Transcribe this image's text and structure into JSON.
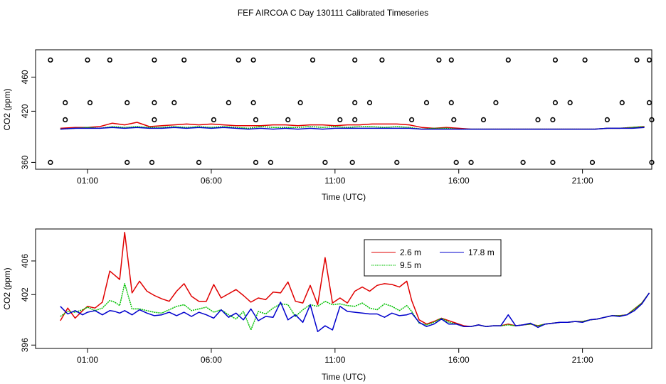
{
  "figure": {
    "title": "FEF AIRCOA C  Day 130111  Calibrated Timeseries"
  },
  "chart_data": [
    {
      "type": "line",
      "title": "",
      "xlabel": "Time (UTC)",
      "ylabel": "CO2 (ppm)",
      "xlim": [
        -1.1,
        23.8
      ],
      "ylim": [
        352,
        492
      ],
      "x_ticks": [
        1,
        6,
        11,
        16,
        21
      ],
      "x_tick_labels": [
        "01:00",
        "06:00",
        "11:00",
        "16:00",
        "21:00"
      ],
      "y_ticks": [
        360,
        420,
        460
      ],
      "y_tick_labels": [
        "360",
        "420",
        "460"
      ],
      "grid": false,
      "series": [
        {
          "name": "2.6 m",
          "color": "#e00000",
          "x": [
            -0.1,
            0.5,
            1,
            1.5,
            2,
            2.5,
            3,
            3.5,
            4,
            4.5,
            5,
            5.5,
            6,
            6.5,
            7,
            7.5,
            8,
            8.5,
            9,
            9.5,
            10,
            10.5,
            11,
            11.5,
            12,
            12.5,
            13,
            13.5,
            14,
            14.5,
            15,
            15.5,
            16,
            16.5,
            17,
            17.5,
            18,
            18.5,
            19,
            19.5,
            20,
            20.5,
            21,
            21.5,
            22,
            22.5,
            23,
            23.5
          ],
          "y": [
            400,
            401,
            401,
            402,
            406,
            404,
            407,
            402,
            403,
            404,
            405,
            404,
            405,
            404,
            403,
            403,
            403,
            404,
            404,
            403,
            404,
            404,
            403,
            404,
            404,
            405,
            405,
            405,
            404,
            401,
            400,
            401,
            400,
            399,
            399,
            399,
            399,
            399,
            399,
            399,
            399,
            399,
            399,
            399,
            400,
            400,
            401,
            402
          ]
        },
        {
          "name": "9.5 m",
          "color": "#00c000",
          "x": [
            -0.1,
            0.5,
            1,
            1.5,
            2,
            2.5,
            3,
            3.5,
            4,
            4.5,
            5,
            5.5,
            6,
            6.5,
            7,
            7.5,
            8,
            8.5,
            9,
            9.5,
            10,
            10.5,
            11,
            11.5,
            12,
            12.5,
            13,
            13.5,
            14,
            14.5,
            15,
            15.5,
            16,
            16.5,
            17,
            17.5,
            18,
            18.5,
            19,
            19.5,
            20,
            20.5,
            21,
            21.5,
            22,
            22.5,
            23,
            23.5
          ],
          "y": [
            399,
            400,
            401,
            400,
            402,
            401,
            402,
            401,
            401,
            402,
            401,
            402,
            401,
            402,
            401,
            400,
            402,
            401,
            401,
            401,
            402,
            401,
            402,
            401,
            402,
            402,
            401,
            402,
            401,
            399,
            400,
            400,
            399,
            399,
            399,
            399,
            399,
            399,
            399,
            399,
            399,
            399,
            399,
            399,
            400,
            400,
            401,
            402
          ]
        },
        {
          "name": "17.8 m",
          "color": "#0000cc",
          "x": [
            -0.1,
            0.5,
            1,
            1.5,
            2,
            2.5,
            3,
            3.5,
            4,
            4.5,
            5,
            5.5,
            6,
            6.5,
            7,
            7.5,
            8,
            8.5,
            9,
            9.5,
            10,
            10.5,
            11,
            11.5,
            12,
            12.5,
            13,
            13.5,
            14,
            14.5,
            15,
            15.5,
            16,
            16.5,
            17,
            17.5,
            18,
            18.5,
            19,
            19.5,
            20,
            20.5,
            21,
            21.5,
            22,
            22.5,
            23,
            23.5
          ],
          "y": [
            399,
            400,
            400,
            400,
            401,
            400,
            401,
            400,
            400,
            401,
            400,
            401,
            400,
            401,
            400,
            399,
            400,
            399,
            400,
            399,
            400,
            399,
            400,
            400,
            400,
            400,
            400,
            400,
            400,
            399,
            399,
            399,
            399,
            399,
            399,
            399,
            399,
            399,
            399,
            399,
            399,
            399,
            399,
            399,
            400,
            400,
            400,
            401
          ]
        }
      ],
      "scatter": {
        "name": "points",
        "color": "#000000",
        "x": [
          -0.5,
          1.0,
          1.9,
          3.7,
          4.9,
          7.1,
          7.7,
          10.1,
          11.8,
          12.9,
          15.2,
          15.7,
          18.0,
          19.9,
          21.1,
          23.2,
          23.7,
          0.1,
          1.1,
          2.6,
          3.7,
          4.5,
          6.7,
          7.7,
          9.6,
          11.8,
          12.4,
          14.7,
          15.7,
          17.5,
          19.9,
          20.5,
          22.6,
          23.7,
          0.1,
          3.7,
          6.1,
          7.8,
          9.1,
          11.2,
          11.8,
          14.1,
          15.8,
          17.0,
          19.2,
          19.8,
          22.0,
          23.8,
          -0.5,
          2.6,
          3.6,
          5.5,
          7.8,
          8.4,
          10.6,
          11.7,
          13.5,
          15.9,
          16.5,
          18.6,
          19.8,
          21.4,
          23.8
        ],
        "y": [
          480,
          480,
          480,
          480,
          480,
          480,
          480,
          480,
          480,
          480,
          480,
          480,
          480,
          480,
          480,
          480,
          480,
          430,
          430,
          430,
          430,
          430,
          430,
          430,
          430,
          430,
          430,
          430,
          430,
          430,
          430,
          430,
          430,
          430,
          410,
          410,
          410,
          410,
          410,
          410,
          410,
          410,
          410,
          410,
          410,
          410,
          410,
          410,
          360,
          360,
          360,
          360,
          360,
          360,
          360,
          360,
          360,
          360,
          360,
          360,
          360,
          360,
          360
        ]
      }
    },
    {
      "type": "line",
      "title": "",
      "xlabel": "Time (UTC)",
      "ylabel": "CO2 (ppm)",
      "xlim": [
        -1.1,
        23.8
      ],
      "ylim": [
        395.6,
        409.8
      ],
      "x_ticks": [
        1,
        6,
        11,
        16,
        21
      ],
      "x_tick_labels": [
        "01:00",
        "06:00",
        "11:00",
        "16:00",
        "21:00"
      ],
      "y_ticks": [
        396,
        402,
        406
      ],
      "y_tick_labels": [
        "396",
        "402",
        "406"
      ],
      "grid": false,
      "legend": {
        "position": "top-right",
        "entries": [
          "2.6 m",
          "9.5 m",
          "17.8 m"
        ]
      },
      "series": [
        {
          "name": "2.6 m",
          "color": "#e00000",
          "x": [
            -0.1,
            0.2,
            0.5,
            0.8,
            1.0,
            1.3,
            1.6,
            1.9,
            2.1,
            2.3,
            2.5,
            2.8,
            3.1,
            3.4,
            3.7,
            4.0,
            4.3,
            4.6,
            4.9,
            5.2,
            5.5,
            5.8,
            6.1,
            6.4,
            6.7,
            7.0,
            7.3,
            7.6,
            7.9,
            8.2,
            8.5,
            8.8,
            9.1,
            9.4,
            9.7,
            10.0,
            10.3,
            10.6,
            10.9,
            11.2,
            11.5,
            11.8,
            12.1,
            12.4,
            12.7,
            13.0,
            13.3,
            13.6,
            13.9,
            14.1,
            14.4,
            14.7,
            15.0,
            15.3,
            15.6,
            15.9,
            16.2,
            16.5,
            16.8,
            17.1,
            17.4,
            17.7,
            18.0,
            18.3,
            18.6,
            18.9,
            19.2,
            19.5,
            19.8,
            20.1,
            20.4,
            20.7,
            21.0,
            21.3,
            21.6,
            21.9,
            22.2,
            22.5,
            22.8,
            23.1,
            23.4,
            23.7
          ],
          "y": [
            398.9,
            400.4,
            399.2,
            400.1,
            400.6,
            400.4,
            401.1,
            404.8,
            404.3,
            403.8,
            409.4,
            402.2,
            403.6,
            402.4,
            401.9,
            401.5,
            401.2,
            402.4,
            403.3,
            401.8,
            401.2,
            401.2,
            403.2,
            401.6,
            402.1,
            402.6,
            401.9,
            401.1,
            401.6,
            401.4,
            402.3,
            402.2,
            403.5,
            401.2,
            401.0,
            403.1,
            400.8,
            406.4,
            401.0,
            401.6,
            401.0,
            402.4,
            402.9,
            402.4,
            403.1,
            403.3,
            403.2,
            402.9,
            403.6,
            401.3,
            399.0,
            398.5,
            398.8,
            399.2,
            398.9,
            398.6,
            398.3,
            398.2,
            398.4,
            398.2,
            398.3,
            398.3,
            398.5,
            398.3,
            398.4,
            398.5,
            398.3,
            398.5,
            398.6,
            398.7,
            398.7,
            398.8,
            398.8,
            399.0,
            399.1,
            399.3,
            399.5,
            399.5,
            399.6,
            400.3,
            401.0,
            402.2
          ]
        },
        {
          "name": "9.5 m",
          "color": "#00c000",
          "x": [
            -0.1,
            0.2,
            0.5,
            0.8,
            1.0,
            1.3,
            1.6,
            1.9,
            2.1,
            2.3,
            2.5,
            2.8,
            3.1,
            3.4,
            3.7,
            4.0,
            4.3,
            4.6,
            4.9,
            5.2,
            5.5,
            5.8,
            6.1,
            6.4,
            6.7,
            7.0,
            7.3,
            7.6,
            7.9,
            8.2,
            8.5,
            8.8,
            9.1,
            9.4,
            9.7,
            10.0,
            10.3,
            10.6,
            10.9,
            11.2,
            11.5,
            11.8,
            12.1,
            12.4,
            12.7,
            13.0,
            13.3,
            13.6,
            13.9,
            14.1,
            14.4,
            14.7,
            15.0,
            15.3,
            15.6,
            15.9,
            16.2,
            16.5,
            16.8,
            17.1,
            17.4,
            17.7,
            18.0,
            18.3,
            18.6,
            18.9,
            19.2,
            19.5,
            19.8,
            20.1,
            20.4,
            20.7,
            21.0,
            21.3,
            21.6,
            21.9,
            22.2,
            22.5,
            22.8,
            23.1,
            23.4,
            23.7
          ],
          "y": [
            399.4,
            400.0,
            399.9,
            400.2,
            400.5,
            400.1,
            400.4,
            401.3,
            401.1,
            400.7,
            403.3,
            400.3,
            400.3,
            400.1,
            399.9,
            399.8,
            400.2,
            400.6,
            400.8,
            400.1,
            400.3,
            400.5,
            399.9,
            400.2,
            399.6,
            399.1,
            400.0,
            397.8,
            400.0,
            399.7,
            400.4,
            400.9,
            400.8,
            399.4,
            400.2,
            400.8,
            400.6,
            401.2,
            400.8,
            400.9,
            400.7,
            400.6,
            401.0,
            400.4,
            400.2,
            400.9,
            400.6,
            400.1,
            400.7,
            400.0,
            398.6,
            398.4,
            398.7,
            399.2,
            398.7,
            398.5,
            398.2,
            398.2,
            398.4,
            398.2,
            398.3,
            398.3,
            398.4,
            398.3,
            398.4,
            398.5,
            398.3,
            398.5,
            398.6,
            398.7,
            398.7,
            398.8,
            398.8,
            399.0,
            399.1,
            399.3,
            399.5,
            399.5,
            399.6,
            400.3,
            401.0,
            402.2
          ]
        },
        {
          "name": "17.8 m",
          "color": "#0000cc",
          "x": [
            -0.1,
            0.2,
            0.5,
            0.8,
            1.0,
            1.3,
            1.6,
            1.9,
            2.1,
            2.3,
            2.5,
            2.8,
            3.1,
            3.4,
            3.7,
            4.0,
            4.3,
            4.6,
            4.9,
            5.2,
            5.5,
            5.8,
            6.1,
            6.4,
            6.7,
            7.0,
            7.3,
            7.6,
            7.9,
            8.2,
            8.5,
            8.8,
            9.1,
            9.4,
            9.7,
            10.0,
            10.3,
            10.6,
            10.9,
            11.2,
            11.5,
            11.8,
            12.1,
            12.4,
            12.7,
            13.0,
            13.3,
            13.6,
            13.9,
            14.1,
            14.4,
            14.7,
            15.0,
            15.3,
            15.6,
            15.9,
            16.2,
            16.5,
            16.8,
            17.1,
            17.4,
            17.7,
            18.0,
            18.3,
            18.6,
            18.9,
            19.2,
            19.5,
            19.8,
            20.1,
            20.4,
            20.7,
            21.0,
            21.3,
            21.6,
            21.9,
            22.2,
            22.5,
            22.8,
            23.1,
            23.4,
            23.7
          ],
          "y": [
            400.6,
            399.7,
            400.1,
            399.6,
            399.9,
            400.1,
            399.6,
            400.1,
            400.0,
            399.8,
            400.1,
            399.6,
            400.2,
            399.8,
            399.5,
            399.6,
            399.9,
            399.5,
            399.9,
            399.4,
            399.9,
            399.6,
            399.2,
            400.2,
            399.3,
            399.8,
            399.0,
            400.3,
            398.9,
            399.4,
            399.3,
            401.1,
            399.0,
            399.6,
            398.7,
            400.8,
            397.6,
            398.3,
            397.8,
            400.6,
            400.0,
            399.9,
            399.8,
            399.7,
            399.7,
            399.3,
            399.8,
            399.5,
            399.6,
            399.8,
            398.7,
            398.2,
            398.5,
            399.1,
            398.5,
            398.5,
            398.2,
            398.2,
            398.4,
            398.2,
            398.3,
            398.3,
            399.6,
            398.3,
            398.4,
            398.6,
            398.1,
            398.5,
            398.6,
            398.7,
            398.7,
            398.8,
            398.7,
            399.0,
            399.1,
            399.3,
            399.5,
            399.4,
            399.6,
            400.1,
            400.9,
            402.2
          ]
        }
      ]
    }
  ]
}
